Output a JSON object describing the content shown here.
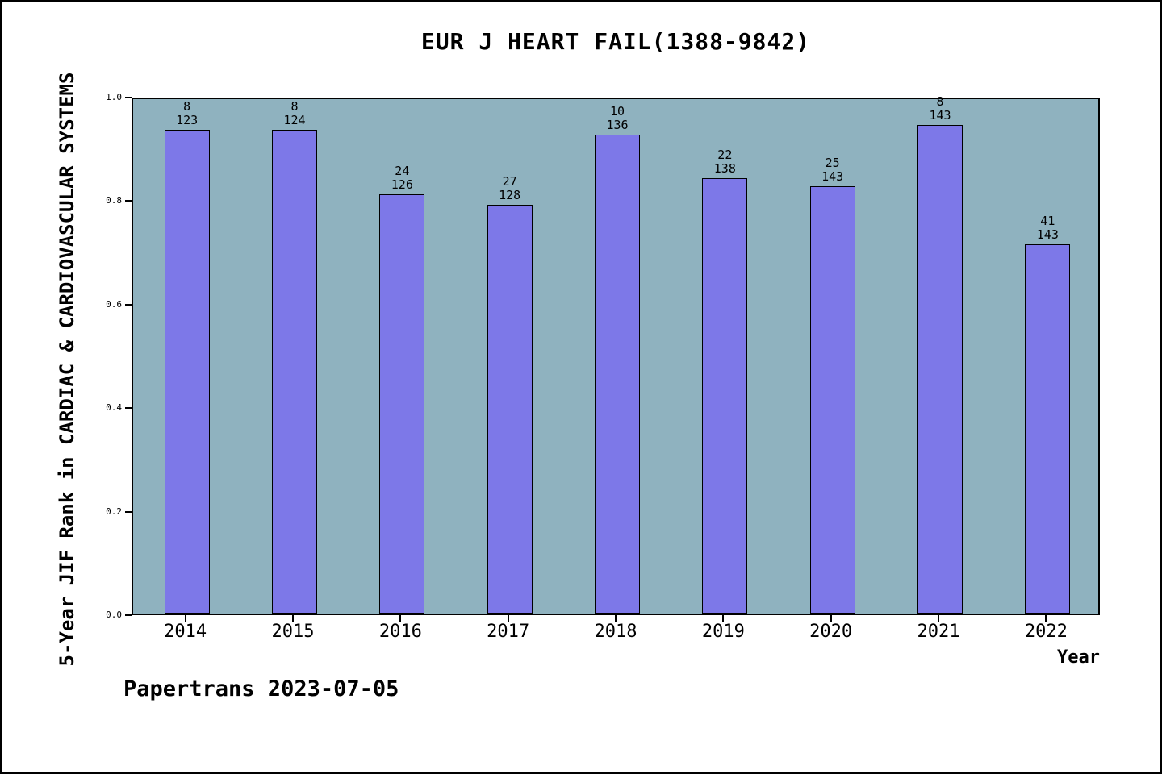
{
  "title": "EUR J HEART FAIL(1388-9842)",
  "xlabel": "Year",
  "ylabel": "5-Year JIF Rank in CARDIAC & CARDIOVASCULAR SYSTEMS",
  "footer": "Papertrans 2023-07-05",
  "colors": {
    "bar_fill": "#7d78e8",
    "bar_edge": "#000000",
    "plot_background": "#8fb2bf",
    "figure_background": "#ffffff"
  },
  "chart_data": {
    "type": "bar",
    "title": "EUR J HEART FAIL(1388-9842)",
    "xlabel": "Year",
    "ylabel": "5-Year JIF Rank in CARDIAC & CARDIOVASCULAR SYSTEMS",
    "categories": [
      "2014",
      "2015",
      "2016",
      "2017",
      "2018",
      "2019",
      "2020",
      "2021",
      "2022"
    ],
    "values": [
      0.935,
      0.935,
      0.81,
      0.789,
      0.926,
      0.841,
      0.825,
      0.944,
      0.713
    ],
    "bar_labels": [
      {
        "rank": "8",
        "total": "123"
      },
      {
        "rank": "8",
        "total": "124"
      },
      {
        "rank": "24",
        "total": "126"
      },
      {
        "rank": "27",
        "total": "128"
      },
      {
        "rank": "10",
        "total": "136"
      },
      {
        "rank": "22",
        "total": "138"
      },
      {
        "rank": "25",
        "total": "143"
      },
      {
        "rank": "8",
        "total": "143"
      },
      {
        "rank": "41",
        "total": "143"
      }
    ],
    "ylim": [
      0.0,
      1.0
    ],
    "yticks": [
      0.0,
      0.2,
      0.4,
      0.6,
      0.8,
      1.0
    ],
    "grid": false,
    "legend_position": "none"
  }
}
